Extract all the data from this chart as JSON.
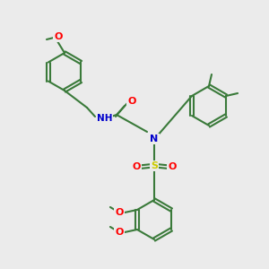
{
  "bg_color": "#ebebeb",
  "bond_color": "#3a7a3a",
  "bond_width": 1.5,
  "atom_colors": {
    "O": "#ff0000",
    "N": "#0000cc",
    "S": "#cccc00",
    "H": "#888888",
    "C": "#3a7a3a"
  },
  "font_size": 7
}
